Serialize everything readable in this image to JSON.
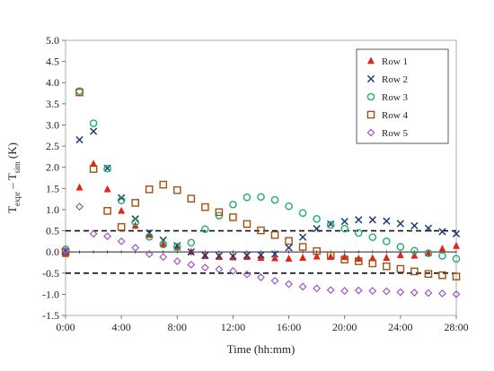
{
  "chart_data": {
    "type": "scatter",
    "xlabel": "Time (hh:mm)",
    "ylabel": {
      "main": "T",
      "sub1": "expr",
      "dash": " – ",
      "main2": "T",
      "sub2": "sim",
      "unit": " (K)"
    },
    "xlim": [
      0,
      28
    ],
    "ylim": [
      -1.5,
      5.0
    ],
    "x_ticks": [
      0,
      4,
      8,
      12,
      16,
      20,
      24,
      28
    ],
    "x_tick_labels": [
      "0:00",
      "4:00",
      "8:00",
      "12:00",
      "16:00",
      "20:00",
      "24:00",
      "28:00"
    ],
    "y_ticks": [
      -1.5,
      -1.0,
      -0.5,
      0.0,
      0.5,
      1.0,
      1.5,
      2.0,
      2.5,
      3.0,
      3.5,
      4.0,
      4.5,
      5.0
    ],
    "y_tick_labels": [
      "-1.5",
      "-1.0",
      "-0.5",
      "0.0",
      "0.5",
      "1.0",
      "1.5",
      "2.0",
      "2.5",
      "3.0",
      "3.5",
      "4.0",
      "4.5",
      "5.0"
    ],
    "reference_lines": [
      {
        "y": 0.5,
        "style": "dashed"
      },
      {
        "y": -0.5,
        "style": "dashed"
      },
      {
        "y": 0.0,
        "style": "solid"
      }
    ],
    "grid": false,
    "legend_position": "top-right",
    "series": [
      {
        "name": "Row 1",
        "marker": "triangle",
        "color": "#e0251b",
        "x": [
          0,
          1,
          2,
          3,
          4,
          5,
          6,
          7,
          8,
          9,
          10,
          11,
          12,
          13,
          14,
          15,
          16,
          17,
          18,
          19,
          20,
          21,
          22,
          23,
          24,
          25,
          26,
          27,
          28
        ],
        "y": [
          -0.05,
          1.52,
          2.08,
          1.48,
          0.97,
          0.62,
          0.4,
          0.18,
          0.1,
          0.0,
          -0.1,
          -0.12,
          -0.13,
          -0.12,
          -0.14,
          -0.15,
          -0.16,
          -0.14,
          -0.11,
          -0.12,
          -0.12,
          -0.16,
          -0.15,
          -0.14,
          -0.08,
          -0.09,
          -0.03,
          0.07,
          0.14
        ]
      },
      {
        "name": "Row 2",
        "marker": "x",
        "color": "#1f3a7a",
        "x": [
          0,
          1,
          2,
          3,
          4,
          5,
          6,
          7,
          8,
          9,
          10,
          11,
          12,
          13,
          14,
          15,
          16,
          17,
          18,
          19,
          20,
          21,
          22,
          23,
          24,
          25,
          26,
          27,
          28
        ],
        "y": [
          0.02,
          2.65,
          2.85,
          1.98,
          1.28,
          0.78,
          0.45,
          0.28,
          0.15,
          0.0,
          -0.08,
          -0.09,
          -0.1,
          -0.08,
          -0.07,
          -0.05,
          0.1,
          0.35,
          0.55,
          0.66,
          0.72,
          0.76,
          0.76,
          0.73,
          0.67,
          0.62,
          0.56,
          0.48,
          0.43
        ]
      },
      {
        "name": "Row 3",
        "marker": "circle",
        "color": "#1fb06e",
        "x": [
          0,
          1,
          2,
          3,
          4,
          5,
          6,
          7,
          8,
          9,
          10,
          11,
          12,
          13,
          14,
          15,
          16,
          17,
          18,
          19,
          20,
          21,
          22,
          23,
          24,
          25,
          26,
          27,
          28
        ],
        "y": [
          0.06,
          3.8,
          3.04,
          1.97,
          1.22,
          0.7,
          0.36,
          0.18,
          0.12,
          0.22,
          0.54,
          0.86,
          1.12,
          1.29,
          1.3,
          1.23,
          1.08,
          0.92,
          0.78,
          0.64,
          0.55,
          0.45,
          0.35,
          0.25,
          0.12,
          0.03,
          -0.03,
          -0.09,
          -0.16
        ]
      },
      {
        "name": "Row 4",
        "marker": "square",
        "color": "#a34f10",
        "x": [
          0,
          1,
          2,
          3,
          4,
          5,
          6,
          7,
          8,
          9,
          10,
          11,
          12,
          13,
          14,
          15,
          16,
          17,
          18,
          19,
          20,
          21,
          22,
          23,
          24,
          25,
          26,
          27,
          28
        ],
        "y": [
          0.0,
          3.77,
          1.96,
          0.97,
          0.59,
          1.16,
          1.48,
          1.59,
          1.46,
          1.26,
          1.06,
          0.94,
          0.82,
          0.66,
          0.51,
          0.4,
          0.26,
          0.12,
          0.02,
          -0.08,
          -0.18,
          -0.22,
          -0.27,
          -0.34,
          -0.4,
          -0.46,
          -0.52,
          -0.55,
          -0.58
        ]
      },
      {
        "name": "Row 5",
        "marker": "diamond",
        "color": "#9a58c8",
        "x": [
          0,
          1,
          2,
          3,
          4,
          5,
          6,
          7,
          8,
          9,
          10,
          11,
          12,
          13,
          14,
          15,
          16,
          17,
          18,
          19,
          20,
          21,
          22,
          23,
          24,
          25,
          26,
          27,
          28
        ],
        "y": [
          0.03,
          1.07,
          0.43,
          0.37,
          0.25,
          0.1,
          -0.05,
          -0.12,
          -0.22,
          -0.3,
          -0.37,
          -0.41,
          -0.45,
          -0.53,
          -0.6,
          -0.68,
          -0.76,
          -0.82,
          -0.86,
          -0.9,
          -0.92,
          -0.91,
          -0.92,
          -0.93,
          -0.95,
          -0.96,
          -0.97,
          -0.98,
          -1.0
        ]
      }
    ]
  }
}
